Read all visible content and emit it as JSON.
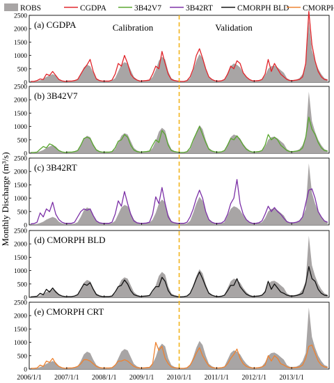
{
  "figure": {
    "ylabel": "Monthly Discharge (m³/s)",
    "calibration_label": "Calibration",
    "validation_label": "Validation",
    "split_date": "2010/1/1",
    "legend": [
      {
        "name": "ROBS",
        "kind": "area",
        "color": "#a8a5a5"
      },
      {
        "name": "CGDPA",
        "kind": "line",
        "color": "#e0242a"
      },
      {
        "name": "3B42V7",
        "kind": "line",
        "color": "#58a62e"
      },
      {
        "name": "3B42RT",
        "kind": "line",
        "color": "#7b2fa6"
      },
      {
        "name": "CMORPH BLD",
        "kind": "line",
        "color": "#111111"
      },
      {
        "name": "CMORPH CRT",
        "kind": "line",
        "color": "#ee8230"
      }
    ],
    "split_line_color": "#f2b41c",
    "x_tick_labels": [
      "2006/1/1",
      "2007/1/1",
      "2008/1/1",
      "2009/1/1",
      "2010/1/1",
      "2011/1/1",
      "2012/1/1",
      "2013/1/1"
    ]
  },
  "chart_data": [
    {
      "type": "area",
      "panel_label": "(a) CGDPA",
      "x_start": "2006/1/1",
      "x_end": "2013/12/1",
      "time_step": "monthly",
      "ylim": [
        0,
        2500
      ],
      "ytick_labels": [
        "0",
        "500",
        "1000",
        "1500",
        "2000",
        "2500"
      ],
      "grid": false,
      "legend_position": "top",
      "series": [
        {
          "name": "ROBS",
          "values": [
            30,
            30,
            40,
            70,
            120,
            200,
            250,
            300,
            250,
            120,
            60,
            40,
            40,
            40,
            50,
            100,
            300,
            550,
            650,
            600,
            350,
            150,
            80,
            50,
            50,
            50,
            70,
            150,
            400,
            650,
            750,
            700,
            450,
            200,
            100,
            60,
            60,
            70,
            80,
            200,
            450,
            800,
            950,
            850,
            400,
            150,
            80,
            50,
            40,
            40,
            60,
            150,
            450,
            800,
            1050,
            900,
            500,
            200,
            100,
            60,
            50,
            60,
            100,
            350,
            600,
            700,
            650,
            550,
            350,
            200,
            100,
            60,
            60,
            70,
            100,
            250,
            500,
            600,
            620,
            550,
            450,
            350,
            150,
            80,
            80,
            90,
            150,
            300,
            600,
            2300,
            1200,
            800,
            500,
            300,
            150,
            100
          ]
        },
        {
          "name": "CGDPA",
          "values": [
            30,
            30,
            60,
            120,
            100,
            300,
            250,
            400,
            250,
            100,
            50,
            30,
            40,
            40,
            60,
            100,
            300,
            500,
            650,
            850,
            400,
            120,
            60,
            40,
            40,
            40,
            80,
            300,
            700,
            600,
            1000,
            700,
            300,
            150,
            80,
            40,
            50,
            60,
            80,
            300,
            600,
            500,
            1150,
            700,
            300,
            100,
            60,
            40,
            30,
            30,
            60,
            200,
            500,
            1000,
            1250,
            900,
            500,
            200,
            100,
            50,
            40,
            50,
            100,
            300,
            600,
            500,
            800,
            700,
            350,
            200,
            100,
            50,
            50,
            60,
            100,
            300,
            850,
            400,
            700,
            500,
            300,
            200,
            100,
            60,
            60,
            80,
            100,
            200,
            700,
            2650,
            1400,
            800,
            400,
            200,
            100,
            80
          ]
        }
      ]
    },
    {
      "type": "area",
      "panel_label": "(b) 3B42V7",
      "x_start": "2006/1/1",
      "x_end": "2013/12/1",
      "time_step": "monthly",
      "ylim": [
        0,
        2500
      ],
      "ytick_labels": [
        "0",
        "500",
        "1000",
        "1500",
        "2000",
        "2500"
      ],
      "grid": false,
      "legend_position": "top",
      "series": [
        {
          "name": "ROBS",
          "values": [
            30,
            30,
            40,
            70,
            120,
            200,
            250,
            300,
            250,
            120,
            60,
            40,
            40,
            40,
            50,
            100,
            300,
            550,
            650,
            600,
            350,
            150,
            80,
            50,
            50,
            50,
            70,
            150,
            400,
            650,
            750,
            700,
            450,
            200,
            100,
            60,
            60,
            70,
            80,
            200,
            450,
            800,
            950,
            850,
            400,
            150,
            80,
            50,
            40,
            40,
            60,
            150,
            450,
            800,
            1050,
            900,
            500,
            200,
            100,
            60,
            50,
            60,
            100,
            350,
            600,
            700,
            650,
            550,
            350,
            200,
            100,
            60,
            60,
            70,
            100,
            250,
            500,
            600,
            620,
            550,
            450,
            350,
            150,
            80,
            80,
            90,
            150,
            300,
            600,
            2300,
            1200,
            800,
            500,
            300,
            150,
            100
          ]
        },
        {
          "name": "3B42V7",
          "values": [
            30,
            30,
            40,
            150,
            250,
            200,
            350,
            300,
            200,
            100,
            50,
            30,
            40,
            40,
            60,
            100,
            300,
            550,
            600,
            550,
            300,
            120,
            60,
            40,
            40,
            40,
            60,
            200,
            450,
            500,
            700,
            600,
            300,
            120,
            60,
            40,
            50,
            60,
            80,
            300,
            500,
            400,
            850,
            700,
            300,
            100,
            60,
            40,
            30,
            30,
            60,
            200,
            500,
            750,
            1000,
            700,
            400,
            150,
            80,
            50,
            40,
            50,
            100,
            300,
            550,
            500,
            650,
            500,
            300,
            150,
            80,
            40,
            50,
            60,
            100,
            300,
            700,
            500,
            600,
            500,
            300,
            200,
            100,
            60,
            60,
            80,
            100,
            200,
            600,
            1350,
            900,
            700,
            400,
            200,
            100,
            80
          ]
        }
      ]
    },
    {
      "type": "area",
      "panel_label": "(c) 3B42RT",
      "x_start": "2006/1/1",
      "x_end": "2013/12/1",
      "time_step": "monthly",
      "ylim": [
        0,
        2500
      ],
      "ytick_labels": [
        "0",
        "500",
        "1000",
        "1500",
        "2000",
        "2500"
      ],
      "grid": false,
      "legend_position": "top",
      "series": [
        {
          "name": "ROBS",
          "values": [
            30,
            30,
            40,
            70,
            120,
            200,
            250,
            300,
            250,
            120,
            60,
            40,
            40,
            40,
            50,
            100,
            300,
            550,
            650,
            600,
            350,
            150,
            80,
            50,
            50,
            50,
            70,
            150,
            400,
            650,
            750,
            700,
            450,
            200,
            100,
            60,
            60,
            70,
            80,
            200,
            450,
            800,
            950,
            850,
            400,
            150,
            80,
            50,
            40,
            40,
            60,
            150,
            450,
            800,
            1050,
            900,
            500,
            200,
            100,
            60,
            50,
            60,
            100,
            350,
            600,
            700,
            650,
            550,
            350,
            200,
            100,
            60,
            60,
            70,
            100,
            250,
            500,
            600,
            620,
            550,
            450,
            350,
            150,
            80,
            80,
            90,
            150,
            300,
            600,
            2300,
            1200,
            800,
            500,
            300,
            150,
            100
          ]
        },
        {
          "name": "3B42RT",
          "values": [
            40,
            50,
            100,
            450,
            300,
            600,
            500,
            850,
            400,
            200,
            100,
            60,
            60,
            60,
            100,
            300,
            500,
            600,
            550,
            600,
            350,
            150,
            80,
            60,
            60,
            60,
            100,
            400,
            900,
            700,
            1250,
            800,
            400,
            150,
            80,
            60,
            60,
            70,
            100,
            400,
            1050,
            800,
            1400,
            800,
            300,
            120,
            80,
            60,
            60,
            60,
            100,
            300,
            600,
            1000,
            1300,
            1000,
            500,
            200,
            100,
            60,
            60,
            70,
            150,
            400,
            800,
            1000,
            1700,
            800,
            400,
            200,
            100,
            60,
            60,
            80,
            150,
            400,
            700,
            500,
            650,
            500,
            400,
            250,
            120,
            80,
            80,
            100,
            150,
            300,
            800,
            1300,
            1350,
            1000,
            500,
            300,
            150,
            100
          ]
        }
      ]
    },
    {
      "type": "area",
      "panel_label": "(d) CMORPH BLD",
      "x_start": "2006/1/1",
      "x_end": "2013/12/1",
      "time_step": "monthly",
      "ylim": [
        0,
        2500
      ],
      "ytick_labels": [
        "0",
        "500",
        "1000",
        "1500",
        "2000",
        "2500"
      ],
      "grid": false,
      "legend_position": "top",
      "series": [
        {
          "name": "ROBS",
          "values": [
            30,
            30,
            40,
            70,
            120,
            200,
            250,
            300,
            250,
            120,
            60,
            40,
            40,
            40,
            50,
            100,
            300,
            550,
            650,
            600,
            350,
            150,
            80,
            50,
            50,
            50,
            70,
            150,
            400,
            650,
            750,
            700,
            450,
            200,
            100,
            60,
            60,
            70,
            80,
            200,
            450,
            800,
            950,
            850,
            400,
            150,
            80,
            50,
            40,
            40,
            60,
            150,
            450,
            800,
            1050,
            900,
            500,
            200,
            100,
            60,
            50,
            60,
            100,
            350,
            600,
            700,
            650,
            550,
            350,
            200,
            100,
            60,
            60,
            70,
            100,
            250,
            500,
            600,
            620,
            550,
            450,
            350,
            150,
            80,
            80,
            90,
            150,
            300,
            600,
            2300,
            1200,
            800,
            500,
            300,
            150,
            100
          ]
        },
        {
          "name": "CMORPH BLD",
          "values": [
            20,
            30,
            40,
            150,
            100,
            300,
            200,
            350,
            200,
            100,
            50,
            30,
            30,
            30,
            50,
            100,
            300,
            500,
            450,
            550,
            300,
            100,
            50,
            30,
            30,
            30,
            50,
            200,
            400,
            450,
            650,
            500,
            250,
            100,
            60,
            30,
            40,
            50,
            70,
            250,
            400,
            400,
            750,
            600,
            250,
            80,
            50,
            30,
            20,
            30,
            50,
            150,
            400,
            700,
            950,
            700,
            400,
            150,
            80,
            40,
            30,
            40,
            80,
            250,
            450,
            450,
            700,
            400,
            250,
            120,
            60,
            30,
            40,
            50,
            80,
            200,
            600,
            300,
            500,
            350,
            200,
            150,
            80,
            50,
            50,
            70,
            100,
            150,
            500,
            1150,
            700,
            600,
            300,
            150,
            80,
            60
          ]
        }
      ]
    },
    {
      "type": "area",
      "panel_label": "(e) CMORPH CRT",
      "x_start": "2006/1/1",
      "x_end": "2013/12/1",
      "time_step": "monthly",
      "ylim": [
        0,
        2500
      ],
      "ytick_labels": [
        "0",
        "500",
        "1000",
        "1500",
        "2000",
        "2500"
      ],
      "grid": false,
      "legend_position": "top",
      "series": [
        {
          "name": "ROBS",
          "values": [
            30,
            30,
            40,
            70,
            120,
            200,
            250,
            300,
            250,
            120,
            60,
            40,
            40,
            40,
            50,
            100,
            300,
            550,
            650,
            600,
            350,
            150,
            80,
            50,
            50,
            50,
            70,
            150,
            400,
            650,
            750,
            700,
            450,
            200,
            100,
            60,
            60,
            70,
            80,
            200,
            450,
            800,
            950,
            850,
            400,
            150,
            80,
            50,
            40,
            40,
            60,
            150,
            450,
            800,
            1050,
            900,
            500,
            200,
            100,
            60,
            50,
            60,
            100,
            350,
            600,
            700,
            650,
            550,
            350,
            200,
            100,
            60,
            60,
            70,
            100,
            250,
            500,
            600,
            620,
            550,
            450,
            350,
            150,
            80,
            80,
            90,
            150,
            300,
            600,
            2300,
            1200,
            800,
            500,
            300,
            150,
            100
          ]
        },
        {
          "name": "CMORPH CRT",
          "values": [
            30,
            30,
            40,
            150,
            100,
            300,
            250,
            400,
            200,
            100,
            50,
            30,
            40,
            40,
            60,
            100,
            200,
            350,
            350,
            300,
            200,
            100,
            50,
            40,
            40,
            40,
            50,
            150,
            300,
            300,
            350,
            300,
            200,
            100,
            50,
            40,
            40,
            50,
            60,
            200,
            1000,
            700,
            850,
            400,
            200,
            80,
            50,
            40,
            30,
            30,
            50,
            150,
            350,
            600,
            800,
            500,
            300,
            120,
            60,
            40,
            40,
            50,
            80,
            200,
            400,
            550,
            750,
            400,
            200,
            100,
            60,
            40,
            40,
            50,
            80,
            150,
            500,
            300,
            500,
            400,
            200,
            150,
            80,
            50,
            50,
            60,
            80,
            150,
            400,
            850,
            900,
            600,
            300,
            150,
            80,
            60
          ]
        }
      ]
    }
  ]
}
